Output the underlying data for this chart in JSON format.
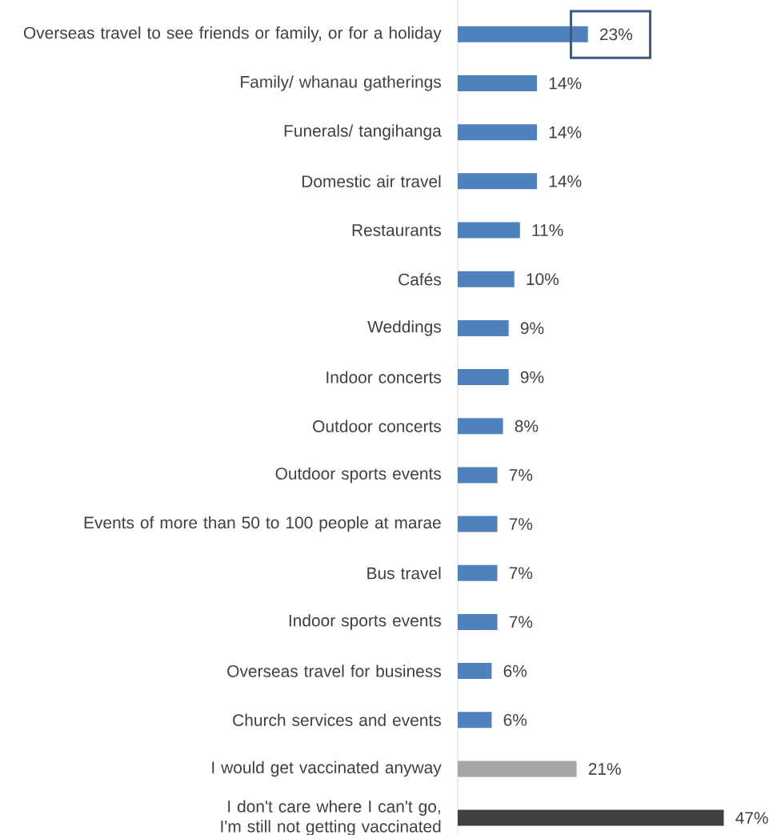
{
  "chart_data": {
    "type": "bar",
    "orientation": "horizontal",
    "categories": [
      "Overseas travel to see friends or family, or for a holiday",
      "Family/ whanau gatherings",
      "Funerals/ tangihanga",
      "Domestic air travel",
      "Restaurants",
      "Cafés",
      "Weddings",
      "Indoor concerts",
      "Outdoor concerts",
      "Outdoor sports events",
      "Events of more than 50 to 100 people at marae",
      "Bus travel",
      "Indoor sports events",
      "Overseas travel for business",
      "Church services and events",
      "I would get vaccinated anyway",
      "I don't care where I can't go, I'm still not getting vaccinated"
    ],
    "values": [
      23,
      14,
      14,
      14,
      11,
      10,
      9,
      9,
      8,
      7,
      7,
      7,
      7,
      6,
      6,
      21,
      47
    ],
    "value_labels": [
      "23%",
      "14%",
      "14%",
      "14%",
      "11%",
      "10%",
      "9%",
      "9%",
      "8%",
      "7%",
      "7%",
      "7%",
      "7%",
      "6%",
      "6%",
      "21%",
      "47%"
    ],
    "colors": [
      "#4f81bd",
      "#4f81bd",
      "#4f81bd",
      "#4f81bd",
      "#4f81bd",
      "#4f81bd",
      "#4f81bd",
      "#4f81bd",
      "#4f81bd",
      "#4f81bd",
      "#4f81bd",
      "#4f81bd",
      "#4f81bd",
      "#4f81bd",
      "#4f81bd",
      "#a6a6a6",
      "#404040"
    ],
    "tick_labels": "y"
  }
}
